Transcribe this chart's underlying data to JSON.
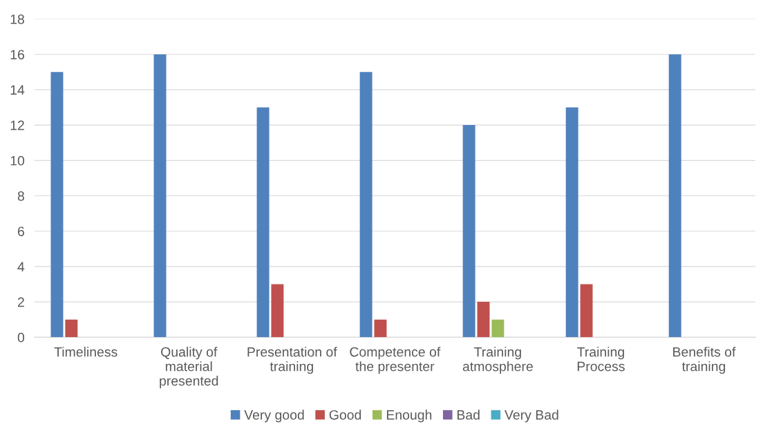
{
  "chart_data": {
    "type": "bar",
    "categories": [
      "Timeliness",
      "Quality of\nmaterial\npresented",
      "Presentation of\ntraining",
      "Competence of\nthe presenter",
      "Training\natmosphere",
      "Training\nProcess",
      "Benefits of\ntraining"
    ],
    "series": [
      {
        "name": "Very good",
        "color": "#4f81bd",
        "values": [
          15,
          16,
          13,
          15,
          12,
          13,
          16
        ]
      },
      {
        "name": "Good",
        "color": "#c0504d",
        "values": [
          1,
          0,
          3,
          1,
          2,
          3,
          0
        ]
      },
      {
        "name": "Enough",
        "color": "#9bbb59",
        "values": [
          0,
          0,
          0,
          0,
          1,
          0,
          0
        ]
      },
      {
        "name": "Bad",
        "color": "#8064a2",
        "values": [
          0,
          0,
          0,
          0,
          0,
          0,
          0
        ]
      },
      {
        "name": "Very Bad",
        "color": "#4bacc6",
        "values": [
          0,
          0,
          0,
          0,
          0,
          0,
          0
        ]
      }
    ],
    "ylim": [
      0,
      18
    ],
    "yticks": [
      0,
      2,
      4,
      6,
      8,
      10,
      12,
      14,
      16,
      18
    ],
    "grid": "y",
    "legend": "bottom"
  }
}
